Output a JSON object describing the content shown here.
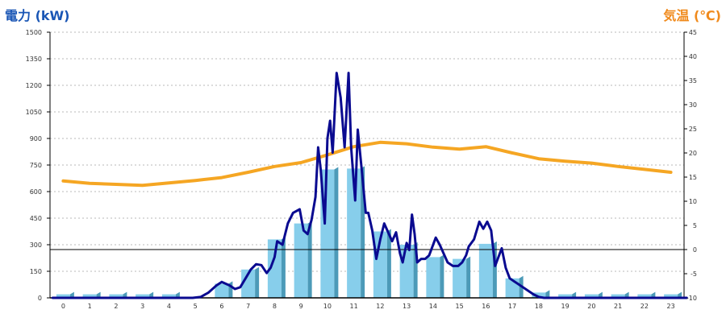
{
  "chart_data": {
    "type": "bar",
    "title_left": "電力 (kW)",
    "title_right": "気温 (℃)",
    "categories": [
      "0",
      "1",
      "2",
      "3",
      "4",
      "5",
      "6",
      "7",
      "8",
      "9",
      "10",
      "11",
      "12",
      "13",
      "14",
      "15",
      "16",
      "17",
      "18",
      "19",
      "20",
      "21",
      "22",
      "23"
    ],
    "y_left": {
      "min": 0,
      "max": 1500,
      "ticks": [
        "0",
        "150",
        "300",
        "450",
        "600",
        "750",
        "900",
        "1050",
        "1200",
        "1350",
        "1500"
      ]
    },
    "y_right": {
      "min": -10,
      "max": 45,
      "ticks": [
        "-10",
        "-5",
        "0",
        "5",
        "10",
        "15",
        "20",
        "25",
        "30",
        "35",
        "40",
        "45"
      ]
    },
    "reference_line_right": 0,
    "bars": {
      "axis": "left",
      "color": "#87ceeb",
      "values": [
        20,
        20,
        20,
        20,
        20,
        0,
        80,
        160,
        330,
        420,
        725,
        730,
        375,
        300,
        230,
        220,
        305,
        110,
        30,
        20,
        20,
        20,
        20,
        20
      ]
    },
    "power_line": {
      "axis": "left",
      "color": "#0a0a90",
      "points": [
        [
          -0.4,
          0
        ],
        [
          4.9,
          0
        ],
        [
          5.2,
          5
        ],
        [
          5.5,
          30
        ],
        [
          5.8,
          70
        ],
        [
          6.0,
          90
        ],
        [
          6.3,
          70
        ],
        [
          6.5,
          50
        ],
        [
          6.7,
          60
        ],
        [
          6.9,
          110
        ],
        [
          7.1,
          160
        ],
        [
          7.3,
          190
        ],
        [
          7.5,
          185
        ],
        [
          7.7,
          140
        ],
        [
          7.85,
          170
        ],
        [
          8.0,
          230
        ],
        [
          8.1,
          320
        ],
        [
          8.3,
          300
        ],
        [
          8.5,
          420
        ],
        [
          8.7,
          480
        ],
        [
          8.95,
          500
        ],
        [
          9.1,
          380
        ],
        [
          9.25,
          360
        ],
        [
          9.4,
          440
        ],
        [
          9.55,
          570
        ],
        [
          9.65,
          850
        ],
        [
          9.75,
          720
        ],
        [
          9.9,
          420
        ],
        [
          10.0,
          900
        ],
        [
          10.1,
          1000
        ],
        [
          10.2,
          820
        ],
        [
          10.35,
          1270
        ],
        [
          10.5,
          1130
        ],
        [
          10.65,
          850
        ],
        [
          10.8,
          1270
        ],
        [
          10.9,
          850
        ],
        [
          11.05,
          550
        ],
        [
          11.15,
          950
        ],
        [
          11.3,
          720
        ],
        [
          11.45,
          480
        ],
        [
          11.55,
          480
        ],
        [
          11.7,
          380
        ],
        [
          11.85,
          220
        ],
        [
          12.0,
          330
        ],
        [
          12.15,
          420
        ],
        [
          12.3,
          370
        ],
        [
          12.45,
          320
        ],
        [
          12.6,
          370
        ],
        [
          12.75,
          250
        ],
        [
          12.85,
          200
        ],
        [
          13.0,
          310
        ],
        [
          13.1,
          270
        ],
        [
          13.2,
          470
        ],
        [
          13.3,
          360
        ],
        [
          13.4,
          200
        ],
        [
          13.55,
          220
        ],
        [
          13.7,
          220
        ],
        [
          13.85,
          240
        ],
        [
          14.1,
          340
        ],
        [
          14.25,
          300
        ],
        [
          14.4,
          250
        ],
        [
          14.55,
          200
        ],
        [
          14.75,
          180
        ],
        [
          14.95,
          180
        ],
        [
          15.1,
          200
        ],
        [
          15.25,
          240
        ],
        [
          15.35,
          290
        ],
        [
          15.55,
          330
        ],
        [
          15.75,
          430
        ],
        [
          15.9,
          390
        ],
        [
          16.05,
          430
        ],
        [
          16.2,
          380
        ],
        [
          16.35,
          180
        ],
        [
          16.6,
          280
        ],
        [
          16.75,
          170
        ],
        [
          16.9,
          110
        ],
        [
          17.2,
          80
        ],
        [
          17.5,
          50
        ],
        [
          17.8,
          20
        ],
        [
          18.0,
          5
        ],
        [
          18.2,
          0
        ],
        [
          23.6,
          0
        ]
      ]
    },
    "temp_line": {
      "axis": "right",
      "color": "#f5a623",
      "points": [
        [
          0,
          14.2
        ],
        [
          1,
          13.7
        ],
        [
          2,
          13.5
        ],
        [
          3,
          13.3
        ],
        [
          4,
          13.8
        ],
        [
          5,
          14.3
        ],
        [
          6,
          14.9
        ],
        [
          7,
          16.0
        ],
        [
          8,
          17.2
        ],
        [
          9,
          18.0
        ],
        [
          10,
          19.6
        ],
        [
          11,
          21.3
        ],
        [
          12,
          22.2
        ],
        [
          13,
          21.9
        ],
        [
          14,
          21.2
        ],
        [
          15,
          20.8
        ],
        [
          16,
          21.3
        ],
        [
          17,
          20.0
        ],
        [
          18,
          18.8
        ],
        [
          19,
          18.3
        ],
        [
          20,
          17.9
        ],
        [
          21,
          17.2
        ],
        [
          22,
          16.6
        ],
        [
          23,
          16.0
        ]
      ]
    }
  }
}
